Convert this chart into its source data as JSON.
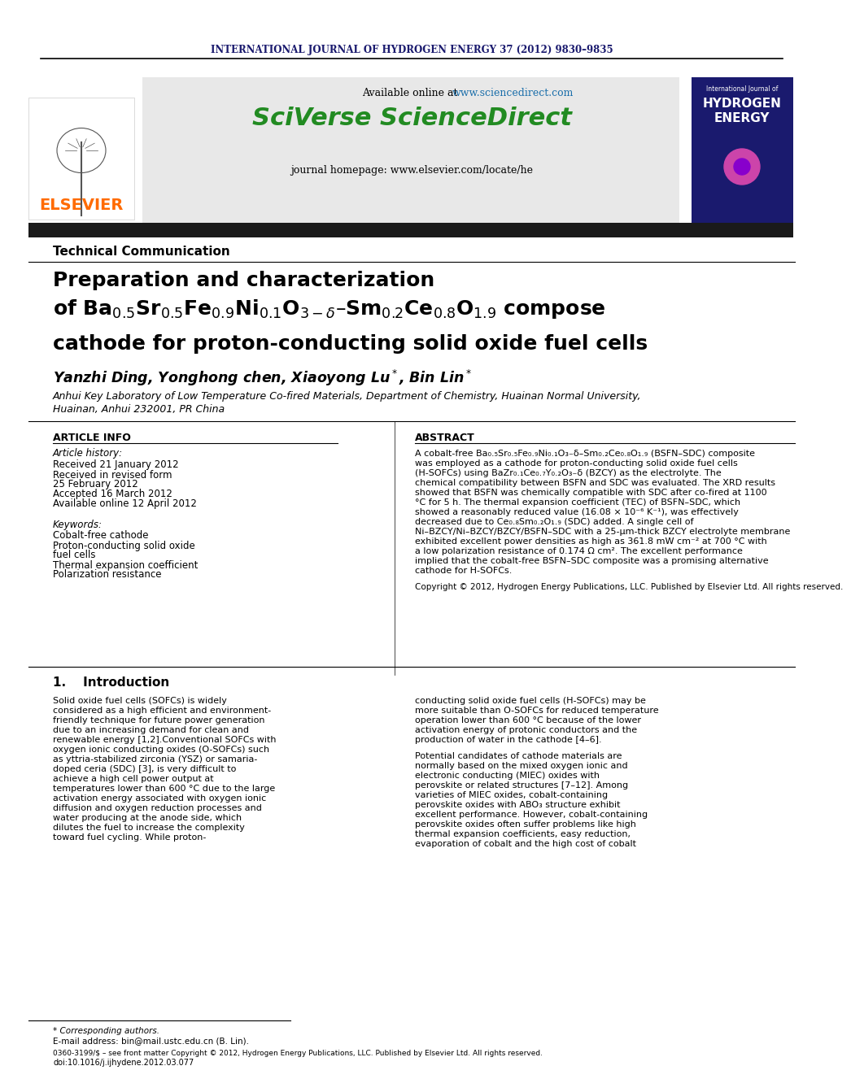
{
  "journal_header": "INTERNATIONAL JOURNAL OF HYDROGEN ENERGY 37 (2012) 9830–9835",
  "available_online": "Available online at ",
  "sciencedirect_url": "www.sciencedirect.com",
  "sciverse_text": "SciVerse ScienceDirect",
  "journal_homepage": "journal homepage: www.elsevier.com/locate/he",
  "section_label": "Technical Communication",
  "title_line1": "Preparation and characterization",
  "title_line2_plain1": "of Ba",
  "title_subscripts2": [
    "0.5",
    "0.5",
    "0.9",
    "0.1",
    "3−δ",
    "0.2",
    "0.8",
    "1.9"
  ],
  "title_line3": "cathode for proton-conducting solid oxide fuel cells",
  "authors": "Yanzhi Ding, Yonghong chen, Xiaoyong Lu",
  "authors2": ", Bin Lin",
  "affiliation1": "Anhui Key Laboratory of Low Temperature Co-fired Materials, Department of Chemistry, Huainan Normal University,",
  "affiliation2": "Huainan, Anhui 232001, PR China",
  "article_info_header": "ARTICLE INFO",
  "article_history_header": "Article history:",
  "received1": "Received 21 January 2012",
  "received_revised": "Received in revised form",
  "date_revised": "25 February 2012",
  "accepted": "Accepted 16 March 2012",
  "available": "Available online 12 April 2012",
  "keywords_header": "Keywords:",
  "keyword1": "Cobalt-free cathode",
  "keyword2": "Proton-conducting solid oxide",
  "keyword3": "fuel cells",
  "keyword4": "Thermal expansion coefficient",
  "keyword5": "Polarization resistance",
  "abstract_header": "ABSTRACT",
  "abstract_text": "A cobalt-free Ba₀.₅Sr₀.₅Fe₀.₉Ni₀.₁O₃₋δ–Sm₀.₂Ce₀.₈O₁.₉ (BSFN–SDC) composite was employed as a cathode for proton-conducting solid oxide fuel cells (H-SOFCs) using BaZr₀.₁Ce₀.₇Y₀.₂O₃₋δ (BZCY) as the electrolyte. The chemical compatibility between BSFN and SDC was evaluated. The XRD results showed that BSFN was chemically compatible with SDC after co-fired at 1100 °C for 5 h. The thermal expansion coefficient (TEC) of BSFN–SDC, which showed a reasonably reduced value (16.08 × 10⁻⁶ K⁻¹), was effectively decreased due to Ce₀.₈Sm₀.₂O₁.₉ (SDC) added. A single cell of Ni–BZCY/Ni–BZCY/BZCY/BSFN–SDC with a 25-μm-thick BZCY electrolyte membrane exhibited excellent power densities as high as 361.8 mW cm⁻² at 700 °C with a low polarization resistance of 0.174 Ω cm². The excellent performance implied that the cobalt-free BSFN–SDC composite was a promising alternative cathode for H-SOFCs.",
  "copyright_text": "Copyright © 2012, Hydrogen Energy Publications, LLC. Published by Elsevier Ltd. All rights reserved.",
  "intro_header": "1.    Introduction",
  "intro_text1": "Solid oxide fuel cells (SOFCs) is widely considered as a high efficient and environment-friendly technique for future power generation due to an increasing demand for clean and renewable energy [1,2].Conventional SOFCs with oxygen ionic conducting oxides (O-SOFCs) such as yttria-stabilized zirconia (YSZ) or samaria-doped ceria (SDC) [3], is very difficult to achieve a high cell power output at temperatures lower than 600 °C due to the large activation energy associated with oxygen ionic diffusion and oxygen reduction processes and water producing at the anode side, which dilutes the fuel to increase the complexity toward fuel cycling. While proton-",
  "intro_text2": "conducting solid oxide fuel cells (H-SOFCs) may be more suitable than O-SOFCs for reduced temperature operation lower than 600 °C because of the lower activation energy of protonic conductors and the production of water in the cathode [4–6].",
  "intro_text3": "Potential candidates of cathode materials are normally based on the mixed oxygen ionic and electronic conducting (MIEC) oxides with perovskite or related structures [7–12]. Among varieties of MIEC oxides, cobalt-containing perovskite oxides with ABO₃ structure exhibit excellent performance. However, cobalt-containing perovskite oxides often suffer problems like high thermal expansion coefficients, easy reduction, evaporation of cobalt and the high cost of cobalt",
  "footnote_star": "* Corresponding authors.",
  "footnote_email": "E-mail address: bin@mail.ustc.edu.cn (B. Lin).",
  "footnote_issn": "0360-3199/$ – see front matter Copyright © 2012, Hydrogen Energy Publications, LLC. Published by Elsevier Ltd. All rights reserved.",
  "footnote_doi": "doi:10.1016/j.ijhydene.2012.03.077",
  "bg_color": "#ffffff",
  "header_bar_color": "#1a1a6e",
  "elsevier_color": "#FF6B00",
  "sciverse_color": "#228B22",
  "url_color": "#1a6eaa",
  "dark_bar_color": "#1a1a1a",
  "header_bg_gray": "#e8e8e8"
}
